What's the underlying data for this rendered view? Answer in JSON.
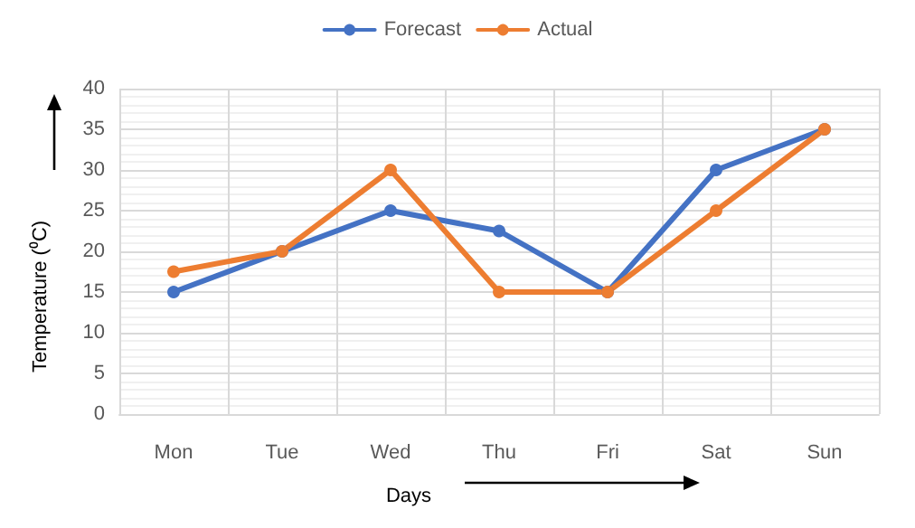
{
  "chart_data": {
    "type": "line",
    "xlabel": "Days",
    "ylabel": "Temperature (⁰C)",
    "categories": [
      "Mon",
      "Tue",
      "Wed",
      "Thu",
      "Fri",
      "Sat",
      "Sun"
    ],
    "series": [
      {
        "name": "Forecast",
        "color": "#4472c4",
        "values": [
          15,
          20,
          25,
          22.5,
          15,
          30,
          35
        ]
      },
      {
        "name": "Actual",
        "color": "#ed7d31",
        "values": [
          17.5,
          20,
          30,
          15,
          15,
          25,
          35
        ]
      }
    ],
    "ylim": [
      0,
      40
    ],
    "yticks": [
      0,
      5,
      10,
      15,
      20,
      25,
      30,
      35,
      40
    ],
    "grid": true,
    "legend": "top",
    "marker": "circle",
    "line_style": "solid"
  }
}
